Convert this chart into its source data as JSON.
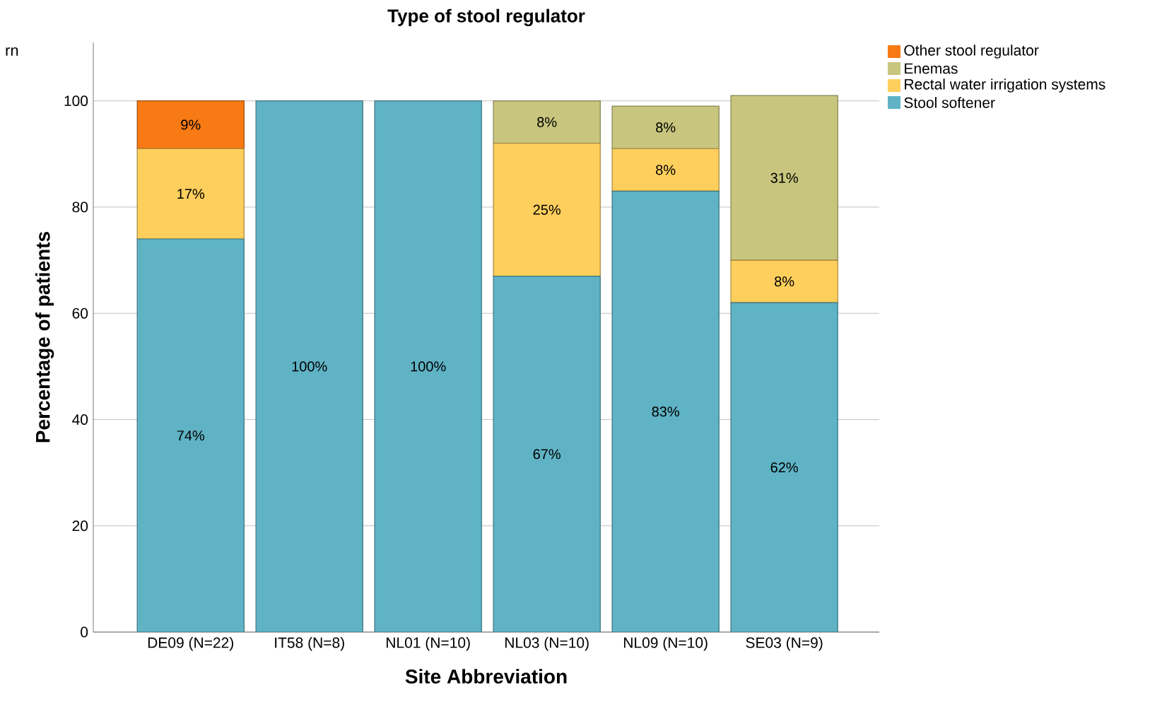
{
  "chart_data": {
    "type": "bar",
    "stacked": true,
    "title": "Type of stool regulator",
    "xlabel": "Site Abbreviation",
    "ylabel": "Percentage of patients",
    "categories": [
      "DE09 (N=22)",
      "IT58 (N=8)",
      "NL01 (N=10)",
      "NL03 (N=10)",
      "NL09 (N=10)",
      "SE03 (N=9)"
    ],
    "series": [
      {
        "name": "Stool softener",
        "color": "#5fb3c5",
        "values": [
          74,
          100,
          100,
          67,
          83,
          62
        ],
        "value_labels": [
          "74%",
          "100%",
          "100%",
          "67%",
          "83%",
          "62%"
        ]
      },
      {
        "name": "Rectal water irrigation systems",
        "color": "#fecf5c",
        "values": [
          17,
          0,
          0,
          25,
          8,
          8
        ],
        "value_labels": [
          "17%",
          null,
          null,
          "25%",
          "8%",
          "8%"
        ]
      },
      {
        "name": "Enemas",
        "color": "#c8c67e",
        "values": [
          0,
          0,
          0,
          8,
          8,
          31
        ],
        "value_labels": [
          null,
          null,
          null,
          "8%",
          "8%",
          "31%"
        ]
      },
      {
        "name": "Other stool regulator",
        "color": "#f77a14",
        "values": [
          9,
          0,
          0,
          0,
          0,
          0
        ],
        "value_labels": [
          "9%",
          null,
          null,
          null,
          null,
          null
        ]
      }
    ],
    "ylim": [
      0,
      111
    ],
    "yticks": [
      0,
      20,
      40,
      60,
      80,
      100
    ],
    "grid": "y",
    "legend": "top right",
    "annotations": [
      "rn"
    ]
  }
}
